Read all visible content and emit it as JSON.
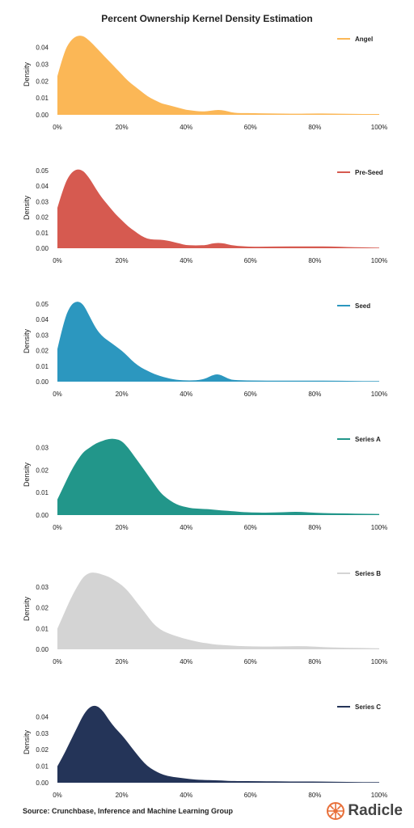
{
  "title": "Percent Ownership Kernel Density Estimation",
  "source": "Source: Crunchbase, Inference and Machine Learning Group",
  "brand": {
    "name": "Radicle",
    "icon": "radicle-logo-icon",
    "color": "#e8703a"
  },
  "chart_data": [
    {
      "type": "area",
      "series": [
        {
          "name": "Angel",
          "color": "#fbb756",
          "x": [
            0,
            2,
            4,
            6,
            8,
            10,
            12,
            14,
            16,
            18,
            20,
            22,
            24,
            26,
            28,
            30,
            32,
            34,
            36,
            38,
            40,
            42,
            44,
            46,
            48,
            50,
            52,
            54,
            56,
            58,
            60,
            65,
            70,
            75,
            80,
            85,
            90,
            95,
            100
          ],
          "values": [
            0.023,
            0.037,
            0.044,
            0.047,
            0.047,
            0.044,
            0.04,
            0.036,
            0.032,
            0.028,
            0.024,
            0.02,
            0.017,
            0.014,
            0.011,
            0.009,
            0.007,
            0.006,
            0.005,
            0.004,
            0.003,
            0.0025,
            0.002,
            0.002,
            0.0025,
            0.003,
            0.0025,
            0.0015,
            0.001,
            0.001,
            0.001,
            0.0008,
            0.0007,
            0.0006,
            0.0008,
            0.0007,
            0.0006,
            0.0005,
            0.0005
          ]
        }
      ],
      "ylabel": "Density",
      "ylim": [
        0,
        0.048
      ],
      "yticks": [
        "0.00",
        "0.01",
        "0.02",
        "0.03",
        "0.04"
      ],
      "xticks": [
        "0%",
        "20%",
        "40%",
        "60%",
        "80%",
        "100%"
      ],
      "legend": "top-right"
    },
    {
      "type": "area",
      "series": [
        {
          "name": "Pre-Seed",
          "color": "#d65a50",
          "x": [
            0,
            2,
            4,
            6,
            8,
            10,
            12,
            14,
            16,
            18,
            20,
            22,
            24,
            26,
            28,
            30,
            32,
            34,
            36,
            38,
            40,
            42,
            44,
            46,
            48,
            50,
            52,
            54,
            56,
            58,
            60,
            65,
            70,
            75,
            80,
            85,
            90,
            95,
            100
          ],
          "values": [
            0.026,
            0.04,
            0.048,
            0.051,
            0.05,
            0.045,
            0.038,
            0.032,
            0.027,
            0.022,
            0.018,
            0.014,
            0.011,
            0.008,
            0.006,
            0.0055,
            0.0055,
            0.005,
            0.004,
            0.003,
            0.002,
            0.0018,
            0.0018,
            0.002,
            0.003,
            0.0035,
            0.003,
            0.002,
            0.0015,
            0.0012,
            0.001,
            0.001,
            0.0012,
            0.0012,
            0.0012,
            0.0012,
            0.0008,
            0.0005,
            0.0004
          ]
        }
      ],
      "ylabel": "Density",
      "ylim": [
        0,
        0.052
      ],
      "yticks": [
        "0.00",
        "0.01",
        "0.02",
        "0.03",
        "0.04",
        "0.05"
      ],
      "xticks": [
        "0%",
        "20%",
        "40%",
        "60%",
        "80%",
        "100%"
      ],
      "legend": "top-right"
    },
    {
      "type": "area",
      "series": [
        {
          "name": "Seed",
          "color": "#2c97bf",
          "x": [
            0,
            2,
            4,
            6,
            8,
            10,
            12,
            14,
            16,
            18,
            20,
            22,
            24,
            26,
            28,
            30,
            32,
            34,
            36,
            38,
            40,
            42,
            44,
            46,
            48,
            50,
            52,
            54,
            56,
            58,
            60,
            65,
            70,
            75,
            80,
            85,
            90,
            95,
            100
          ],
          "values": [
            0.021,
            0.039,
            0.049,
            0.052,
            0.05,
            0.042,
            0.034,
            0.029,
            0.026,
            0.023,
            0.02,
            0.016,
            0.012,
            0.009,
            0.007,
            0.005,
            0.0035,
            0.0025,
            0.0015,
            0.001,
            0.0008,
            0.0008,
            0.001,
            0.002,
            0.004,
            0.005,
            0.003,
            0.0012,
            0.001,
            0.0008,
            0.0008,
            0.0007,
            0.0006,
            0.0006,
            0.0006,
            0.0006,
            0.0005,
            0.0004,
            0.0004
          ]
        }
      ],
      "ylabel": "Density",
      "ylim": [
        0,
        0.052
      ],
      "yticks": [
        "0.00",
        "0.01",
        "0.02",
        "0.03",
        "0.04",
        "0.05"
      ],
      "xticks": [
        "0%",
        "20%",
        "40%",
        "60%",
        "80%",
        "100%"
      ],
      "legend": "top-right"
    },
    {
      "type": "area",
      "series": [
        {
          "name": "Series A",
          "color": "#22968a",
          "x": [
            0,
            2,
            4,
            6,
            8,
            10,
            12,
            14,
            16,
            18,
            20,
            22,
            24,
            26,
            28,
            30,
            32,
            34,
            36,
            38,
            40,
            42,
            44,
            46,
            48,
            50,
            52,
            54,
            56,
            58,
            60,
            65,
            70,
            75,
            80,
            85,
            90,
            95,
            100
          ],
          "values": [
            0.007,
            0.013,
            0.019,
            0.024,
            0.028,
            0.03,
            0.032,
            0.033,
            0.034,
            0.034,
            0.033,
            0.03,
            0.026,
            0.022,
            0.018,
            0.014,
            0.01,
            0.0075,
            0.0055,
            0.0042,
            0.0035,
            0.003,
            0.0028,
            0.0027,
            0.0025,
            0.0022,
            0.002,
            0.0018,
            0.0015,
            0.0013,
            0.0012,
            0.001,
            0.0013,
            0.0015,
            0.001,
            0.0008,
            0.0007,
            0.0006,
            0.0005
          ]
        }
      ],
      "ylabel": "Density",
      "ylim": [
        0,
        0.036
      ],
      "yticks": [
        "0.00",
        "0.01",
        "0.02",
        "0.03"
      ],
      "xticks": [
        "0%",
        "20%",
        "40%",
        "60%",
        "80%",
        "100%"
      ],
      "legend": "top-right"
    },
    {
      "type": "area",
      "series": [
        {
          "name": "Series B",
          "color": "#d4d4d4",
          "x": [
            0,
            2,
            4,
            6,
            8,
            10,
            12,
            14,
            16,
            18,
            20,
            22,
            24,
            26,
            28,
            30,
            32,
            34,
            36,
            38,
            40,
            42,
            44,
            46,
            48,
            50,
            52,
            54,
            56,
            58,
            60,
            65,
            70,
            75,
            80,
            85,
            90,
            95,
            100
          ],
          "values": [
            0.01,
            0.017,
            0.024,
            0.03,
            0.035,
            0.037,
            0.037,
            0.036,
            0.035,
            0.033,
            0.031,
            0.028,
            0.024,
            0.02,
            0.016,
            0.012,
            0.0095,
            0.008,
            0.0068,
            0.0058,
            0.005,
            0.0042,
            0.0035,
            0.003,
            0.0025,
            0.0022,
            0.002,
            0.0018,
            0.0016,
            0.0015,
            0.0014,
            0.0013,
            0.0014,
            0.0016,
            0.0013,
            0.0009,
            0.0007,
            0.0006,
            0.0005
          ]
        }
      ],
      "ylabel": "Density",
      "ylim": [
        0,
        0.039
      ],
      "yticks": [
        "0.00",
        "0.01",
        "0.02",
        "0.03"
      ],
      "xticks": [
        "0%",
        "20%",
        "40%",
        "60%",
        "80%",
        "100%"
      ],
      "legend": "top-right"
    },
    {
      "type": "area",
      "series": [
        {
          "name": "Series C",
          "color": "#243458",
          "x": [
            0,
            2,
            4,
            6,
            8,
            10,
            12,
            14,
            16,
            18,
            20,
            22,
            24,
            26,
            28,
            30,
            32,
            34,
            36,
            38,
            40,
            42,
            44,
            46,
            48,
            50,
            52,
            54,
            56,
            58,
            60,
            65,
            70,
            75,
            80,
            85,
            90,
            95,
            100
          ],
          "values": [
            0.01,
            0.017,
            0.025,
            0.033,
            0.041,
            0.046,
            0.047,
            0.044,
            0.038,
            0.033,
            0.029,
            0.024,
            0.019,
            0.014,
            0.01,
            0.0075,
            0.0055,
            0.0042,
            0.0035,
            0.003,
            0.0025,
            0.002,
            0.0018,
            0.0016,
            0.0015,
            0.0014,
            0.0012,
            0.0011,
            0.001,
            0.001,
            0.001,
            0.0009,
            0.0008,
            0.0007,
            0.0008,
            0.0006,
            0.0005,
            0.0004,
            0.0004
          ]
        }
      ],
      "ylabel": "Density",
      "ylim": [
        0,
        0.049
      ],
      "yticks": [
        "0.00",
        "0.01",
        "0.02",
        "0.03",
        "0.04"
      ],
      "xticks": [
        "0%",
        "20%",
        "40%",
        "60%",
        "80%",
        "100%"
      ],
      "legend": "top-right"
    }
  ]
}
